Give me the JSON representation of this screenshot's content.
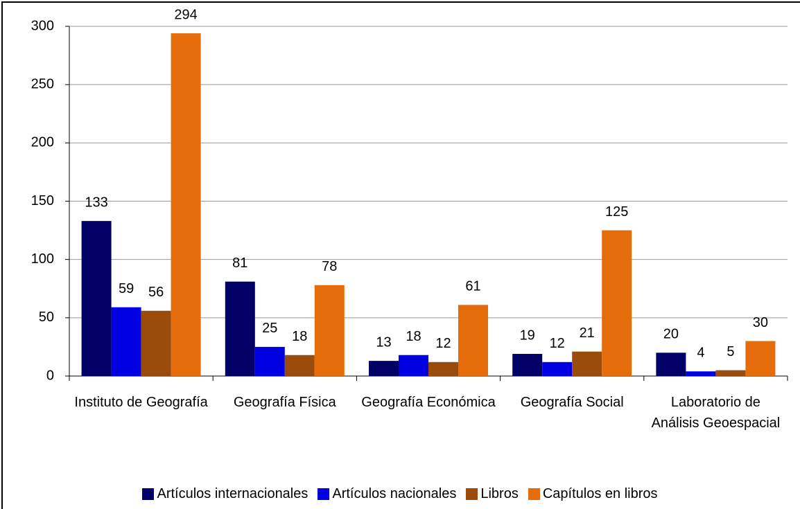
{
  "chart_data": {
    "type": "bar",
    "categories": [
      "Instituto de Geografía",
      "Geografía Física",
      "Geografía Económica",
      "Geografía Social",
      "Laboratorio de Análisis Geoespacial"
    ],
    "series": [
      {
        "name": "Artículos internacionales",
        "color": "#000066",
        "values": [
          133,
          81,
          13,
          19,
          20
        ]
      },
      {
        "name": "Artículos nacionales",
        "color": "#0000e0",
        "values": [
          59,
          25,
          18,
          12,
          4
        ]
      },
      {
        "name": "Libros",
        "color": "#994c0c",
        "values": [
          56,
          18,
          12,
          21,
          5
        ]
      },
      {
        "name": "Capítulos en libros",
        "color": "#e46c0a",
        "values": [
          294,
          78,
          61,
          125,
          30
        ]
      }
    ],
    "ylim": [
      0,
      300
    ],
    "yticks": [
      0,
      50,
      100,
      150,
      200,
      250,
      300
    ],
    "grid": true,
    "legend": "bottom"
  }
}
